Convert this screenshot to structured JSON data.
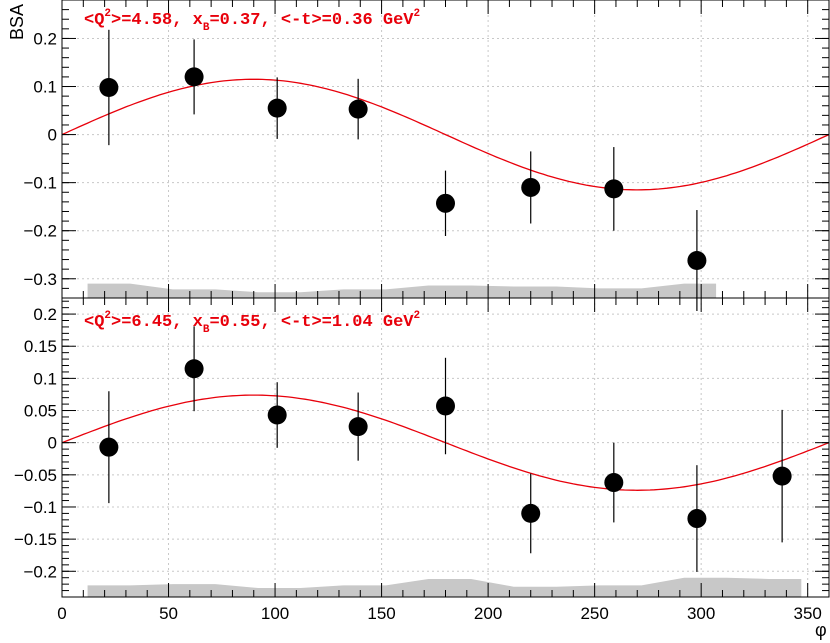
{
  "chart_data": [
    {
      "type": "scatter",
      "title_parts": {
        "q2": "<Q",
        "q2_sup": "2",
        "rest1": ">=4.58, x",
        "xb_sub": "B",
        "rest2": "=0.37, <-t>=0.36 GeV",
        "gev_sup": "2"
      },
      "ylabel": "BSA",
      "xlabel": "",
      "xlim": [
        0,
        360
      ],
      "ylim": [
        -0.34,
        0.28
      ],
      "yticks": [
        -0.3,
        -0.2,
        -0.1,
        0,
        0.1,
        0.2
      ],
      "ytick_labels": [
        "−0.3",
        "−0.2",
        "−0.1",
        "0",
        "0.1",
        "0.2"
      ],
      "x": [
        22,
        62,
        101,
        139,
        180,
        220,
        259,
        298
      ],
      "y": [
        0.098,
        0.12,
        0.055,
        0.053,
        -0.143,
        -0.11,
        -0.113,
        -0.262
      ],
      "yerr": [
        0.12,
        0.078,
        0.064,
        0.063,
        0.068,
        0.075,
        0.087,
        0.105
      ],
      "fit": {
        "amplitude": 0.115,
        "description": "A sin(phi)"
      },
      "systematics": {
        "x": [
          12,
          32,
          52,
          72,
          92,
          112,
          132,
          152,
          172,
          192,
          212,
          232,
          252,
          272,
          292,
          307
        ],
        "top": [
          -0.31,
          -0.31,
          -0.322,
          -0.322,
          -0.328,
          -0.328,
          -0.322,
          -0.322,
          -0.314,
          -0.314,
          -0.316,
          -0.316,
          -0.32,
          -0.32,
          -0.31,
          -0.31
        ],
        "bottom": -0.34
      },
      "grid": true,
      "colors": {
        "points": "#000000",
        "fit": "#e8000b",
        "band": "#c8c8c8",
        "title": "#e8000b"
      }
    },
    {
      "type": "scatter",
      "title_parts": {
        "q2": "<Q",
        "q2_sup": "2",
        "rest1": ">=6.45, x",
        "xb_sub": "B",
        "rest2": "=0.55, <-t>=1.04 GeV",
        "gev_sup": "2"
      },
      "ylabel": "",
      "xlabel": "φ",
      "xlim": [
        0,
        360
      ],
      "ylim": [
        -0.24,
        0.225
      ],
      "yticks": [
        -0.2,
        -0.15,
        -0.1,
        -0.05,
        0,
        0.05,
        0.1,
        0.15,
        0.2
      ],
      "ytick_labels": [
        "−0.2",
        "−0.15",
        "−0.1",
        "−0.05",
        "0",
        "0.05",
        "0.1",
        "0.15",
        "0.2"
      ],
      "xticks": [
        0,
        50,
        100,
        150,
        200,
        250,
        300,
        350
      ],
      "xtick_labels": [
        "0",
        "50",
        "100",
        "150",
        "200",
        "250",
        "300",
        "350"
      ],
      "x": [
        22,
        62,
        101,
        139,
        180,
        220,
        259,
        298,
        338
      ],
      "y": [
        -0.007,
        0.115,
        0.043,
        0.025,
        0.057,
        -0.11,
        -0.062,
        -0.118,
        -0.052
      ],
      "yerr": [
        0.087,
        0.066,
        0.051,
        0.053,
        0.075,
        0.062,
        0.062,
        0.083,
        0.103
      ],
      "fit": {
        "amplitude": 0.074,
        "description": "A sin(phi)"
      },
      "systematics": {
        "x": [
          12,
          32,
          52,
          72,
          92,
          112,
          132,
          152,
          172,
          192,
          212,
          232,
          252,
          272,
          292,
          312,
          332,
          347
        ],
        "top": [
          -0.222,
          -0.222,
          -0.22,
          -0.22,
          -0.226,
          -0.226,
          -0.222,
          -0.222,
          -0.212,
          -0.212,
          -0.224,
          -0.224,
          -0.222,
          -0.222,
          -0.21,
          -0.21,
          -0.212,
          -0.212
        ],
        "bottom": -0.24
      },
      "grid": true,
      "colors": {
        "points": "#000000",
        "fit": "#e8000b",
        "band": "#c8c8c8",
        "title": "#e8000b"
      }
    }
  ]
}
